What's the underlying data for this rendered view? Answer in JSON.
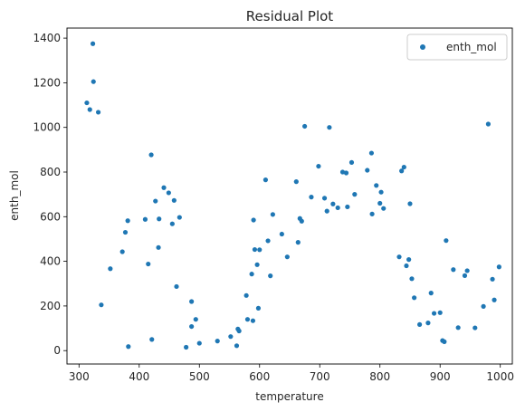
{
  "chart_data": {
    "type": "scatter",
    "title": "Residual Plot",
    "xlabel": "temperature",
    "ylabel": "enth_mol",
    "xlim": [
      280,
      1020
    ],
    "ylim": [
      -60,
      1445
    ],
    "xticks": [
      300,
      400,
      500,
      600,
      700,
      800,
      900,
      1000
    ],
    "yticks": [
      0,
      200,
      400,
      600,
      800,
      1000,
      1200,
      1400
    ],
    "grid": false,
    "legend": {
      "position": "top-right"
    },
    "series": [
      {
        "name": "enth_mol",
        "color": "#1f77b4",
        "points": [
          [
            313,
            1110
          ],
          [
            318,
            1080
          ],
          [
            323,
            1375
          ],
          [
            324,
            1205
          ],
          [
            332,
            1068
          ],
          [
            337,
            205
          ],
          [
            352,
            367
          ],
          [
            372,
            443
          ],
          [
            377,
            530
          ],
          [
            381,
            582
          ],
          [
            382,
            18
          ],
          [
            410,
            588
          ],
          [
            415,
            388
          ],
          [
            420,
            877
          ],
          [
            421,
            50
          ],
          [
            427,
            670
          ],
          [
            432,
            462
          ],
          [
            433,
            590
          ],
          [
            441,
            730
          ],
          [
            449,
            707
          ],
          [
            455,
            568
          ],
          [
            458,
            673
          ],
          [
            462,
            287
          ],
          [
            467,
            597
          ],
          [
            478,
            15
          ],
          [
            487,
            220
          ],
          [
            487,
            108
          ],
          [
            494,
            140
          ],
          [
            500,
            33
          ],
          [
            530,
            43
          ],
          [
            552,
            63
          ],
          [
            562,
            22
          ],
          [
            564,
            97
          ],
          [
            566,
            88
          ],
          [
            578,
            247
          ],
          [
            580,
            140
          ],
          [
            587,
            343
          ],
          [
            589,
            134
          ],
          [
            590,
            585
          ],
          [
            592,
            453
          ],
          [
            596,
            385
          ],
          [
            598,
            190
          ],
          [
            600,
            452
          ],
          [
            610,
            765
          ],
          [
            614,
            492
          ],
          [
            618,
            335
          ],
          [
            622,
            610
          ],
          [
            637,
            522
          ],
          [
            646,
            420
          ],
          [
            661,
            757
          ],
          [
            664,
            485
          ],
          [
            667,
            592
          ],
          [
            670,
            580
          ],
          [
            675,
            1005
          ],
          [
            686,
            688
          ],
          [
            698,
            826
          ],
          [
            708,
            683
          ],
          [
            712,
            625
          ],
          [
            716,
            1000
          ],
          [
            722,
            657
          ],
          [
            730,
            640
          ],
          [
            738,
            800
          ],
          [
            744,
            796
          ],
          [
            746,
            644
          ],
          [
            753,
            843
          ],
          [
            758,
            700
          ],
          [
            779,
            808
          ],
          [
            786,
            885
          ],
          [
            787,
            612
          ],
          [
            794,
            740
          ],
          [
            800,
            660
          ],
          [
            802,
            710
          ],
          [
            806,
            637
          ],
          [
            832,
            420
          ],
          [
            836,
            805
          ],
          [
            840,
            822
          ],
          [
            844,
            380
          ],
          [
            848,
            408
          ],
          [
            850,
            658
          ],
          [
            853,
            322
          ],
          [
            857,
            237
          ],
          [
            866,
            117
          ],
          [
            880,
            124
          ],
          [
            885,
            258
          ],
          [
            890,
            167
          ],
          [
            900,
            170
          ],
          [
            904,
            45
          ],
          [
            907,
            40
          ],
          [
            910,
            493
          ],
          [
            922,
            363
          ],
          [
            930,
            103
          ],
          [
            941,
            336
          ],
          [
            945,
            358
          ],
          [
            958,
            102
          ],
          [
            972,
            198
          ],
          [
            980,
            1015
          ],
          [
            987,
            320
          ],
          [
            990,
            227
          ],
          [
            998,
            375
          ]
        ]
      }
    ]
  }
}
